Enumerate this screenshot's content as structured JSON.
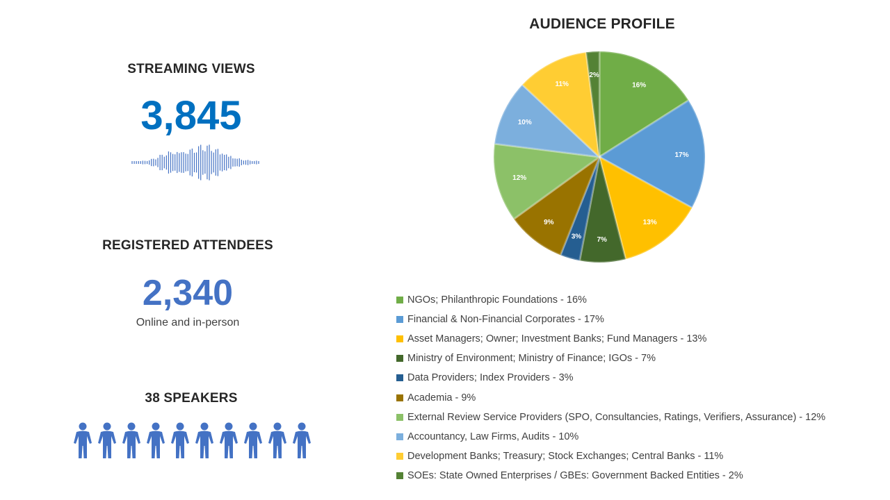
{
  "streaming": {
    "heading": "STREAMING VIEWS",
    "value": "3,845",
    "icon": "sound-wave-icon"
  },
  "registered": {
    "heading": "REGISTERED ATTENDEES",
    "value": "2,340",
    "subtitle": "Online and in-person"
  },
  "speakers": {
    "heading": "38 SPEAKERS",
    "icon": "person-icon",
    "icon_count": 10,
    "icon_color": "#4472c4"
  },
  "chart_data": {
    "type": "pie",
    "title": "AUDIENCE PROFILE",
    "legend_position": "bottom",
    "slices": [
      {
        "label": "NGOs; Philanthropic Foundations - 16%",
        "value": 16,
        "data_label": "16%",
        "color": "#70ad47"
      },
      {
        "label": "Financial & Non-Financial Corporates - 17%",
        "value": 17,
        "data_label": "17%",
        "color": "#5b9bd5"
      },
      {
        "label": "Asset Managers; Owner; Investment Banks; Fund Managers - 13%",
        "value": 13,
        "data_label": "13%",
        "color": "#ffc000"
      },
      {
        "label": "Ministry of Environment; Ministry of Finance; IGOs - 7%",
        "value": 7,
        "data_label": "7%",
        "color": "#43682b"
      },
      {
        "label": "Data Providers; Index Providers - 3%",
        "value": 3,
        "data_label": "3%",
        "color": "#255e91"
      },
      {
        "label": "Academia - 9%",
        "value": 9,
        "data_label": "9%",
        "color": "#997300"
      },
      {
        "label": "External Review Service Providers (SPO, Consultancies, Ratings, Verifiers, Assurance) - 12%",
        "value": 12,
        "data_label": "12%",
        "color": "#8cc168"
      },
      {
        "label": "Accountancy, Law Firms, Audits - 10%",
        "value": 10,
        "data_label": "10%",
        "color": "#7cafdd"
      },
      {
        "label": "Development Banks; Treasury; Stock Exchanges; Central Banks - 11%",
        "value": 11,
        "data_label": "11%",
        "color": "#ffcd33"
      },
      {
        "label": "SOEs: State Owned Enterprises / GBEs: Government Backed Entities - 2%",
        "value": 2,
        "data_label": "2%",
        "color": "#548235"
      }
    ]
  }
}
